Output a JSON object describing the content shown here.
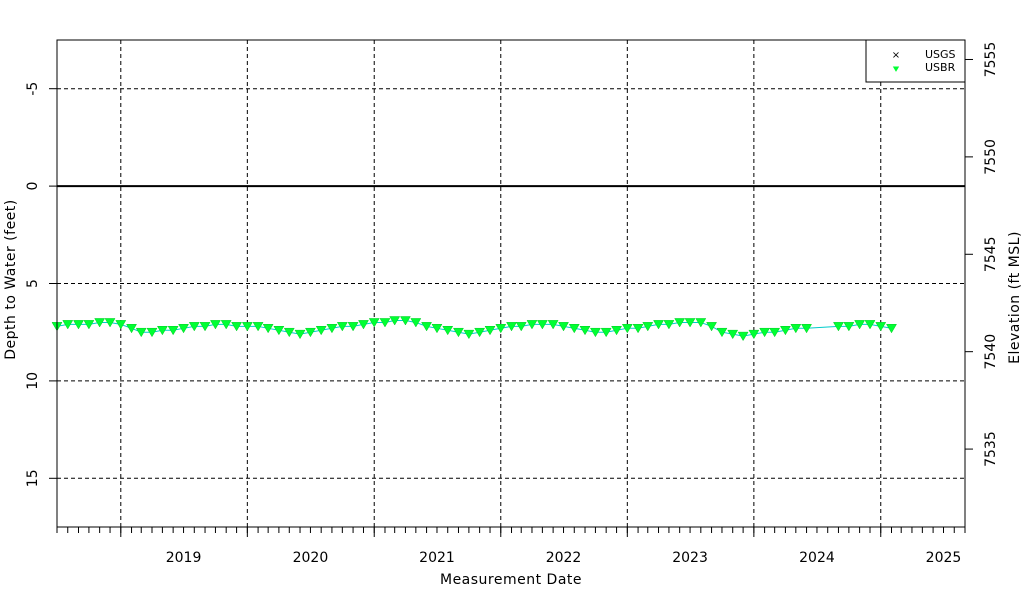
{
  "chart_data": {
    "type": "line",
    "xlabel": "Measurement Date",
    "ylabel_left": "Depth to Water (feet)",
    "ylabel_right": "Elevation (ft MSL)",
    "x_tick_labels": [
      "2019",
      "2020",
      "2021",
      "2022",
      "2023",
      "2024",
      "2025"
    ],
    "y_left_ticks": [
      "-5",
      "0",
      "5",
      "10",
      "15"
    ],
    "y_right_ticks": [
      "7555",
      "7550",
      "7545",
      "7540",
      "7535"
    ],
    "xlim": [
      "2018-07-01",
      "2025-09-01"
    ],
    "ylim_left": [
      17.5,
      -7.5
    ],
    "ylim_right": [
      7531,
      7556
    ],
    "grid": true,
    "legend_position": "top-right",
    "legend": [
      {
        "name": "USGS",
        "marker": "x",
        "color": "#000000"
      },
      {
        "name": "USBR",
        "marker": "triangle-down",
        "color": "#00ff33"
      }
    ],
    "colors": {
      "usbr_marker": "#00ff33",
      "usbr_line": "#00cccc",
      "zero_line": "#000000"
    },
    "series": [
      {
        "name": "USBR",
        "x": [
          "2018-07-01",
          "2018-08-01",
          "2018-09-01",
          "2018-10-01",
          "2018-11-01",
          "2018-12-01",
          "2019-01-01",
          "2019-02-01",
          "2019-03-01",
          "2019-04-01",
          "2019-05-01",
          "2019-06-01",
          "2019-07-01",
          "2019-08-01",
          "2019-09-01",
          "2019-10-01",
          "2019-11-01",
          "2019-12-01",
          "2020-01-01",
          "2020-02-01",
          "2020-03-01",
          "2020-04-01",
          "2020-05-01",
          "2020-06-01",
          "2020-07-01",
          "2020-08-01",
          "2020-09-01",
          "2020-10-01",
          "2020-11-01",
          "2020-12-01",
          "2021-01-01",
          "2021-02-01",
          "2021-03-01",
          "2021-04-01",
          "2021-05-01",
          "2021-06-01",
          "2021-07-01",
          "2021-08-01",
          "2021-09-01",
          "2021-10-01",
          "2021-11-01",
          "2021-12-01",
          "2022-01-01",
          "2022-02-01",
          "2022-03-01",
          "2022-04-01",
          "2022-05-01",
          "2022-06-01",
          "2022-07-01",
          "2022-08-01",
          "2022-09-01",
          "2022-10-01",
          "2022-11-01",
          "2022-12-01",
          "2023-01-01",
          "2023-02-01",
          "2023-03-01",
          "2023-04-01",
          "2023-05-01",
          "2023-06-01",
          "2023-07-01",
          "2023-08-01",
          "2023-09-01",
          "2023-10-01",
          "2023-11-01",
          "2023-12-01",
          "2024-01-01",
          "2024-02-01",
          "2024-03-01",
          "2024-04-01",
          "2024-05-01",
          "2024-06-01",
          "2024-09-01",
          "2024-10-01",
          "2024-11-01",
          "2024-12-01",
          "2025-01-01",
          "2025-02-01"
        ],
        "y": [
          7.2,
          7.1,
          7.1,
          7.1,
          7.0,
          7.0,
          7.1,
          7.3,
          7.5,
          7.5,
          7.4,
          7.4,
          7.3,
          7.2,
          7.2,
          7.1,
          7.1,
          7.2,
          7.2,
          7.2,
          7.3,
          7.4,
          7.5,
          7.6,
          7.5,
          7.4,
          7.3,
          7.2,
          7.2,
          7.1,
          7.0,
          7.0,
          6.9,
          6.9,
          7.0,
          7.2,
          7.3,
          7.4,
          7.5,
          7.6,
          7.5,
          7.4,
          7.3,
          7.2,
          7.2,
          7.1,
          7.1,
          7.1,
          7.2,
          7.3,
          7.4,
          7.5,
          7.5,
          7.4,
          7.3,
          7.3,
          7.2,
          7.1,
          7.1,
          7.0,
          7.0,
          7.0,
          7.2,
          7.5,
          7.6,
          7.7,
          7.6,
          7.5,
          7.5,
          7.4,
          7.3,
          7.3,
          7.2,
          7.2,
          7.1,
          7.1,
          7.2,
          7.3
        ]
      },
      {
        "name": "USGS",
        "x": [],
        "y": []
      }
    ]
  }
}
